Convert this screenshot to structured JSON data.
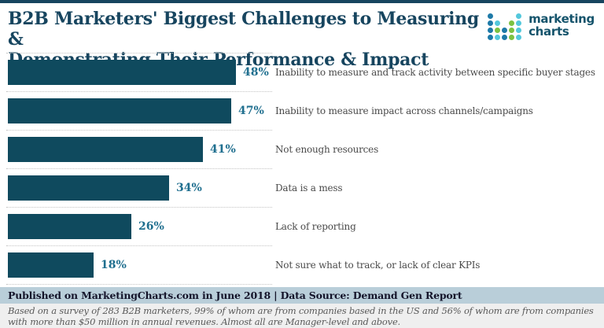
{
  "header": {
    "title_line1": "B2B Marketers' Biggest Challenges to Measuring &",
    "title_line2": "Demonstrating Their Performance & Impact",
    "logo": {
      "text_line1": "marketing",
      "text_line2": "charts",
      "dot_colors": {
        "blue": "#1e7aa8",
        "cyan": "#54c8dc",
        "green": "#7cc242"
      },
      "dot_pattern": [
        [
          "blue",
          null,
          null,
          null,
          "cyan"
        ],
        [
          "blue",
          "cyan",
          null,
          "green",
          "cyan"
        ],
        [
          "blue",
          "green",
          "blue",
          "green",
          "cyan"
        ],
        [
          "blue",
          "cyan",
          "blue",
          "green",
          "cyan"
        ]
      ]
    }
  },
  "chart_data": {
    "type": "bar",
    "orientation": "horizontal",
    "title": "B2B Marketers' Biggest Challenges to Measuring & Demonstrating Their Performance & Impact",
    "categories": [
      "Inability to measure and track activity between specific buyer stages",
      "Inability to measure impact across channels/campaigns",
      "Not enough resources",
      "Data is a mess",
      "Lack of reporting",
      "Not sure what to track, or lack of clear KPIs"
    ],
    "values": [
      48,
      47,
      41,
      34,
      26,
      18
    ],
    "value_suffix": "%",
    "xlim": [
      0,
      50
    ],
    "bar_color": "#0f4a5e",
    "value_label_color": "#1e6e8e",
    "grid": "dotted horizontal separators between rows",
    "legend": "none"
  },
  "footer": {
    "published_line": "Published on MarketingCharts.com in June 2018 | Data Source: Demand Gen Report",
    "note": "Based on a survey of 283 B2B marketers, 99% of whom are from companies based in the US and 56% of whom are from companies with more than $50 million in annual revenues. Almost all are Manager-level and above."
  },
  "colors": {
    "accent_dark_teal": "#17455f",
    "bar": "#0f4a5e",
    "value_label": "#1e6e8e",
    "published_band_bg": "#b9ced9",
    "note_bg": "#efefef",
    "top_border": "#17455f",
    "bottom_border": "#2e6c8a",
    "separator_dotted": "#c4c4c4"
  }
}
